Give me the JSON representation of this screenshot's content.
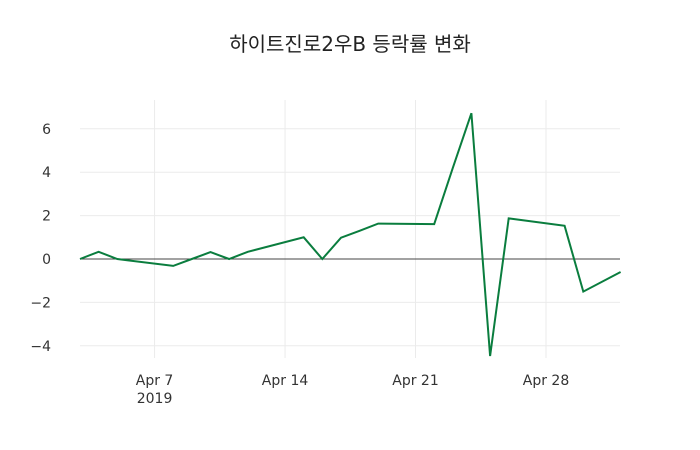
{
  "chart_data": {
    "type": "line",
    "title": "하이트진로2우B 등락률 변화",
    "xlabel": "",
    "ylabel": "",
    "x": [
      "2019-04-03",
      "2019-04-04",
      "2019-04-05",
      "2019-04-08",
      "2019-04-09",
      "2019-04-10",
      "2019-04-11",
      "2019-04-12",
      "2019-04-15",
      "2019-04-16",
      "2019-04-17",
      "2019-04-18",
      "2019-04-19",
      "2019-04-22",
      "2019-04-23",
      "2019-04-24",
      "2019-04-25",
      "2019-04-26",
      "2019-04-29",
      "2019-04-30",
      "2019-05-02"
    ],
    "series": [
      {
        "name": "등락률",
        "color": "#0a7d3e",
        "values": [
          0,
          0.33,
          0,
          -0.32,
          0,
          0.32,
          0,
          0.33,
          1.0,
          0,
          0.98,
          1.3,
          1.63,
          1.61,
          4.2,
          6.72,
          -4.47,
          1.87,
          1.53,
          -1.5,
          -0.6
        ]
      }
    ],
    "x_ticks": [
      {
        "label": "Apr 7",
        "sub": "2019",
        "date": "2019-04-07"
      },
      {
        "label": "Apr 14",
        "sub": "",
        "date": "2019-04-14"
      },
      {
        "label": "Apr 21",
        "sub": "",
        "date": "2019-04-21"
      },
      {
        "label": "Apr 28",
        "sub": "",
        "date": "2019-04-28"
      }
    ],
    "y_ticks": [
      6,
      4,
      2,
      0,
      -2,
      -4
    ],
    "y_tick_labels": [
      "6",
      "4",
      "2",
      "0",
      "−2",
      "−4"
    ],
    "ylim": [
      -4.7,
      7.2
    ],
    "xlim": [
      "2019-04-03",
      "2019-05-02"
    ],
    "grid": true,
    "legend": "none",
    "zero_line": true
  }
}
